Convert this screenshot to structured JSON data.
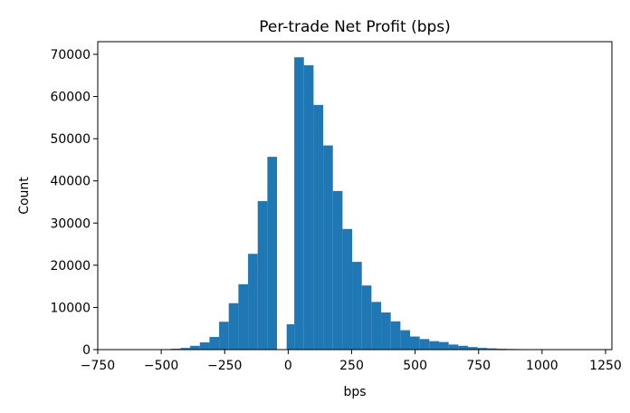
{
  "chart_data": {
    "type": "histogram",
    "title": "Per-trade Net Profit (bps)",
    "xlabel": "bps",
    "ylabel": "Count",
    "xlim": [
      -750,
      1275
    ],
    "ylim": [
      0,
      73000
    ],
    "x_ticks": [
      -750,
      -500,
      -250,
      0,
      250,
      500,
      750,
      1000,
      1250
    ],
    "y_ticks": [
      0,
      10000,
      20000,
      30000,
      40000,
      50000,
      60000,
      70000
    ],
    "bar_color": "#1f77b4",
    "grid": false,
    "legend": "none",
    "bins": [
      {
        "x0": -500,
        "x1": -462,
        "count": 100
      },
      {
        "x0": -462,
        "x1": -424,
        "count": 200
      },
      {
        "x0": -424,
        "x1": -386,
        "count": 400
      },
      {
        "x0": -386,
        "x1": -348,
        "count": 900
      },
      {
        "x0": -348,
        "x1": -310,
        "count": 1700
      },
      {
        "x0": -310,
        "x1": -272,
        "count": 3000
      },
      {
        "x0": -272,
        "x1": -234,
        "count": 6600
      },
      {
        "x0": -234,
        "x1": -196,
        "count": 11000
      },
      {
        "x0": -196,
        "x1": -158,
        "count": 15500
      },
      {
        "x0": -158,
        "x1": -120,
        "count": 22700
      },
      {
        "x0": -120,
        "x1": -82,
        "count": 35200
      },
      {
        "x0": -82,
        "x1": -44,
        "count": 45700
      },
      {
        "x0": -44,
        "x1": -6,
        "count": 0
      },
      {
        "x0": -6,
        "x1": 24,
        "count": 6000
      },
      {
        "x0": 24,
        "x1": 62,
        "count": 69300
      },
      {
        "x0": 62,
        "x1": 100,
        "count": 67400
      },
      {
        "x0": 100,
        "x1": 138,
        "count": 58000
      },
      {
        "x0": 138,
        "x1": 176,
        "count": 48400
      },
      {
        "x0": 176,
        "x1": 214,
        "count": 37600
      },
      {
        "x0": 214,
        "x1": 252,
        "count": 28600
      },
      {
        "x0": 252,
        "x1": 290,
        "count": 20800
      },
      {
        "x0": 290,
        "x1": 328,
        "count": 15200
      },
      {
        "x0": 328,
        "x1": 366,
        "count": 11300
      },
      {
        "x0": 366,
        "x1": 404,
        "count": 8800
      },
      {
        "x0": 404,
        "x1": 442,
        "count": 6700
      },
      {
        "x0": 442,
        "x1": 480,
        "count": 4600
      },
      {
        "x0": 480,
        "x1": 518,
        "count": 3100
      },
      {
        "x0": 518,
        "x1": 556,
        "count": 2500
      },
      {
        "x0": 556,
        "x1": 594,
        "count": 2000
      },
      {
        "x0": 594,
        "x1": 632,
        "count": 1800
      },
      {
        "x0": 632,
        "x1": 670,
        "count": 1200
      },
      {
        "x0": 670,
        "x1": 708,
        "count": 900
      },
      {
        "x0": 708,
        "x1": 746,
        "count": 600
      },
      {
        "x0": 746,
        "x1": 784,
        "count": 400
      },
      {
        "x0": 784,
        "x1": 822,
        "count": 300
      },
      {
        "x0": 822,
        "x1": 860,
        "count": 200
      },
      {
        "x0": 860,
        "x1": 898,
        "count": 150
      },
      {
        "x0": 898,
        "x1": 936,
        "count": 120
      },
      {
        "x0": 936,
        "x1": 974,
        "count": 90
      }
    ]
  }
}
